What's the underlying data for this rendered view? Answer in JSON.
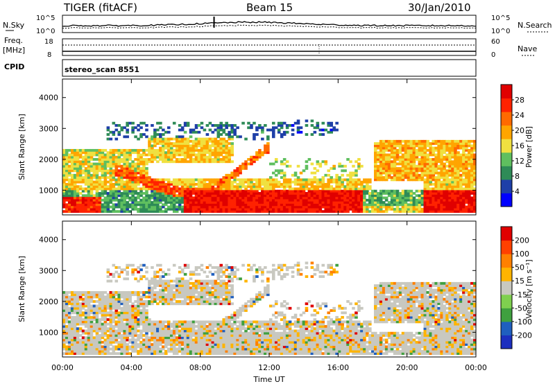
{
  "header": {
    "radar": "TIGER (fitACF)",
    "beam": "Beam 15",
    "date": "30/Jan/2010"
  },
  "top_panel": {
    "left_label": "N.Sky",
    "left_ticks": [
      "10^5",
      "10^0"
    ],
    "right_ticks": [
      "10^5",
      "10^0"
    ],
    "right_label": "N.Search"
  },
  "freq_panel": {
    "left_label_1": "Freq.",
    "left_label_2": "[MHz]",
    "left_ticks": [
      "18",
      "8"
    ],
    "right_ticks": [
      "60",
      "0"
    ],
    "right_label": "Nave"
  },
  "cpid_panel": {
    "label": "CPID",
    "text": "stereo_scan 8551"
  },
  "colors": {
    "power_scale": [
      "#0000ff",
      "#1e3fa8",
      "#2e8b57",
      "#5fbf5f",
      "#f0e040",
      "#ffa500",
      "#ff6a00",
      "#ff2200",
      "#e00000"
    ],
    "velocity_scale": [
      "#1c2fbf",
      "#1f5fbf",
      "#3fa03f",
      "#7fd04f",
      "#c8c8c0",
      "#ffb400",
      "#ff8000",
      "#ff4000",
      "#e00000"
    ],
    "gray_scatter": "#c8c8c0"
  },
  "chart_data": [
    {
      "type": "heatmap",
      "panel": "power",
      "title": "",
      "xlabel": "",
      "ylabel": "Slant Range [km]",
      "ylim": [
        200,
        4600
      ],
      "y_ticks": [
        "1000",
        "2000",
        "3000",
        "4000"
      ],
      "colorbar_label": "Power [dB]",
      "colorbar_ticks": [
        "28",
        "24",
        "20",
        "16",
        "12",
        "8",
        "4"
      ],
      "colorbar_range": [
        0,
        32
      ]
    },
    {
      "type": "heatmap",
      "panel": "velocity",
      "title": "",
      "xlabel": "Time UT",
      "ylabel": "Slant Range [km]",
      "ylim": [
        200,
        4600
      ],
      "y_ticks": [
        "1000",
        "2000",
        "3000",
        "4000"
      ],
      "x_ticks": [
        "00:00",
        "04:00",
        "08:00",
        "12:00",
        "16:00",
        "20:00",
        "00:00"
      ],
      "colorbar_label": "Velocity [m s⁻¹]",
      "colorbar_ticks": [
        "200",
        "100",
        "50",
        "15",
        "-15",
        "-50",
        "-100",
        "-200"
      ],
      "colorbar_range": [
        -250,
        250
      ]
    }
  ]
}
